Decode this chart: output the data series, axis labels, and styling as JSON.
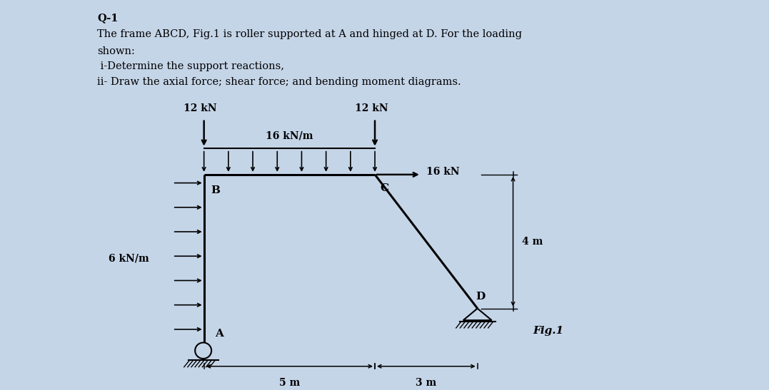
{
  "bg_color": "#c5d5e8",
  "title_lines": [
    "Q-1",
    "The frame ABCD, Fig.1 is roller supported at A and hinged at D. For the loading",
    "shown:",
    " i-Determine the support reactions,",
    "ii- Draw the axial force; shear force; and bending moment diagrams."
  ],
  "load_labels": {
    "12kN_left": "12 kN",
    "12kN_right": "12 kN",
    "16kNm": "16 kN/m",
    "16kN": "16 kN",
    "6kNm": "6 kN/m"
  },
  "dim_labels": {
    "5m": "5 m",
    "3m": "3 m",
    "4m": "4 m"
  },
  "fig_label": "Fig.1",
  "frame_color": "#000000",
  "text_color": "#000000",
  "ox": 2.85,
  "oy": 0.58,
  "sx": 0.48,
  "sy": 0.48,
  "A_m": [
    0,
    0
  ],
  "B_m": [
    0,
    5
  ],
  "C_m": [
    5,
    5
  ],
  "D_m": [
    8,
    1
  ]
}
